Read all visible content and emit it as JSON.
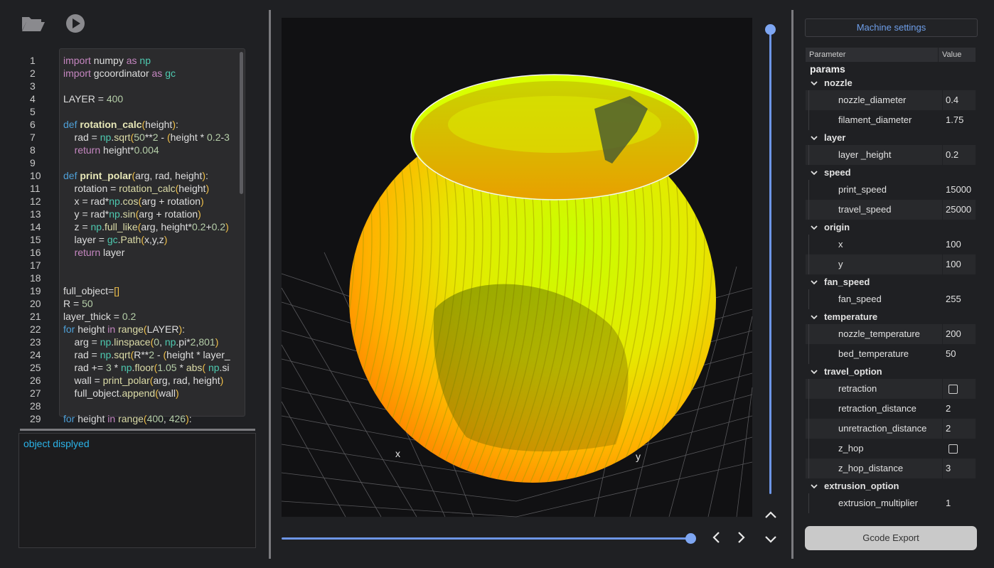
{
  "toolbar": {
    "open_icon": "folder-open-icon",
    "run_icon": "play-icon"
  },
  "editor": {
    "line_numbers": [
      "1",
      "2",
      "3",
      "4",
      "5",
      "6",
      "7",
      "8",
      "9",
      "10",
      "11",
      "12",
      "13",
      "14",
      "15",
      "16",
      "17",
      "18",
      "19",
      "20",
      "21",
      "22",
      "23",
      "24",
      "25",
      "26",
      "27",
      "28",
      "29"
    ],
    "code_lines": [
      "import numpy as np",
      "import gcoordinator as gc",
      "",
      "LAYER = 400",
      "",
      "def rotation_calc(height):",
      "    rad = np.sqrt(50**2 - (height * 0.2-3",
      "    return height*0.004",
      "",
      "def print_polar(arg, rad, height):",
      "    rotation = rotation_calc(height)",
      "    x = rad*np.cos(arg + rotation)",
      "    y = rad*np.sin(arg + rotation)",
      "    z = np.full_like(arg, height*0.2+0.2)",
      "    layer = gc.Path(x,y,z)",
      "    return layer",
      "",
      "",
      "full_object=[]",
      "R = 50",
      "layer_thick = 0.2",
      "for height in range(LAYER):",
      "    arg = np.linspace(0, np.pi*2,801)",
      "    rad = np.sqrt(R**2 - (height * layer_",
      "    rad += 3 * np.floor(1.05 * abs( np.si",
      "    wall = print_polar(arg, rad, height)",
      "    full_object.append(wall)",
      "",
      "for height in range(400, 426):"
    ]
  },
  "console": {
    "message": "object displyed"
  },
  "viewer": {
    "axis_x": "x",
    "axis_y": "y"
  },
  "controls": {
    "prev_icon": "chevron-left-icon",
    "next_icon": "chevron-right-icon",
    "up_icon": "chevron-up-icon",
    "down_icon": "chevron-down-icon"
  },
  "settings": {
    "machine_button": "Machine settings",
    "header": {
      "parameter": "Parameter",
      "value": "Value"
    },
    "root": "params",
    "groups": [
      {
        "name": "nozzle",
        "items": [
          {
            "name": "nozzle_diameter",
            "value": "0.4"
          },
          {
            "name": "filament_diameter",
            "value": "1.75"
          }
        ]
      },
      {
        "name": "layer",
        "items": [
          {
            "name": "layer _height",
            "value": "0.2"
          }
        ]
      },
      {
        "name": "speed",
        "items": [
          {
            "name": "print_speed",
            "value": "15000"
          },
          {
            "name": "travel_speed",
            "value": "25000"
          }
        ]
      },
      {
        "name": "origin",
        "items": [
          {
            "name": "x",
            "value": "100"
          },
          {
            "name": "y",
            "value": "100"
          }
        ]
      },
      {
        "name": "fan_speed",
        "items": [
          {
            "name": "fan_speed",
            "value": "255"
          }
        ]
      },
      {
        "name": "temperature",
        "items": [
          {
            "name": "nozzle_temperature",
            "value": "200"
          },
          {
            "name": "bed_temperature",
            "value": "50"
          }
        ]
      },
      {
        "name": "travel_option",
        "items": [
          {
            "name": "retraction",
            "value": "",
            "checkbox": true
          },
          {
            "name": "retraction_distance",
            "value": "2"
          },
          {
            "name": "unretraction_distance",
            "value": "2"
          },
          {
            "name": "z_hop",
            "value": "",
            "checkbox": true
          },
          {
            "name": "z_hop_distance",
            "value": "3"
          }
        ]
      },
      {
        "name": "extrusion_option",
        "items": [
          {
            "name": "extrusion_multiplier",
            "value": "1"
          }
        ]
      }
    ],
    "export_button": "Gcode Export"
  },
  "colors": {
    "accent": "#6d95e6",
    "console_text": "#2bb3e8",
    "machine_button_text": "#6f9fea"
  }
}
